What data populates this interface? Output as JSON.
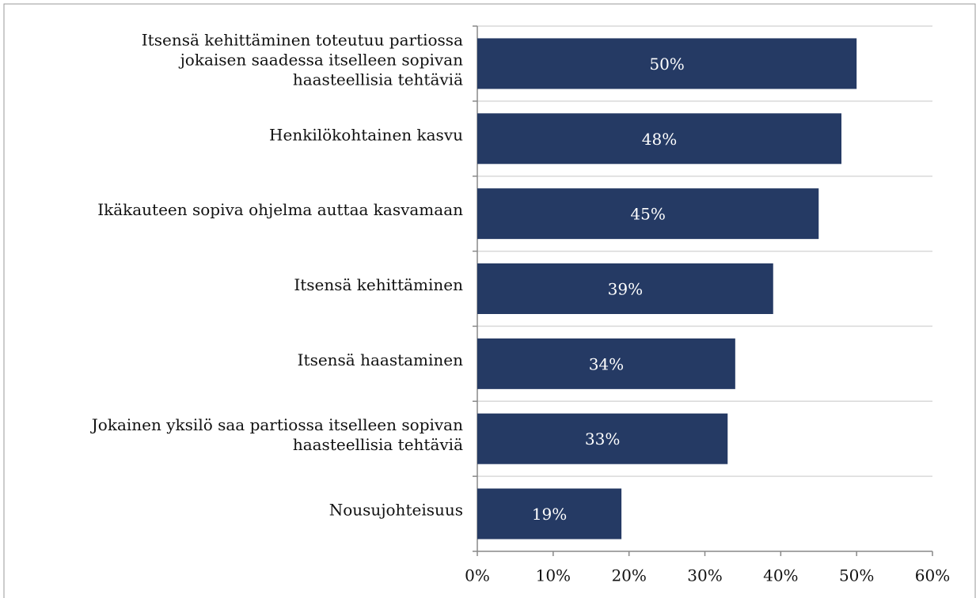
{
  "chart_data": {
    "type": "barh",
    "categories": [
      "Itsensä kehittäminen toteutuu partiossa\njokaisen saadessa itselleen sopivan\nhaasteellisia tehtäviä",
      "Henkilökohtainen kasvu",
      "Ikäkauteen sopiva ohjelma auttaa kasvamaan",
      "Itsensä kehittäminen",
      "Itsensä haastaminen",
      "Jokainen yksilö saa partiossa itselleen sopivan\nhaasteellisia tehtäviä",
      "Nousujohteisuus"
    ],
    "values": [
      50,
      48,
      45,
      39,
      34,
      33,
      19
    ],
    "value_labels": [
      "50%",
      "48%",
      "45%",
      "39%",
      "34%",
      "33%",
      "19%"
    ],
    "color": "#253a64",
    "xlim": [
      0,
      60
    ],
    "xticks": [
      {
        "value": 0,
        "label": "0%"
      },
      {
        "value": 10,
        "label": "10%"
      },
      {
        "value": 20,
        "label": "20%"
      },
      {
        "value": 30,
        "label": "30%"
      },
      {
        "value": 40,
        "label": "40%"
      },
      {
        "value": 50,
        "label": "50%"
      },
      {
        "value": 60,
        "label": "60%"
      }
    ],
    "grid": true
  }
}
